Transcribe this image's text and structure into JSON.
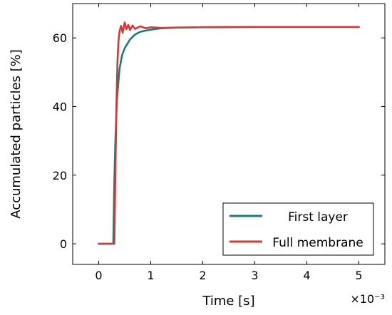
{
  "chart_data": {
    "type": "line",
    "xlabel": "Time [s]",
    "ylabel": "Accumulated particles [%]",
    "x_scale_label": "×10⁻³",
    "xlim": [
      -0.0005,
      0.0055
    ],
    "ylim": [
      -6,
      70
    ],
    "x_ticks": [
      0,
      0.001,
      0.002,
      0.003,
      0.004,
      0.005
    ],
    "x_tick_labels": [
      "0",
      "1",
      "2",
      "3",
      "4",
      "5"
    ],
    "y_ticks": [
      0,
      20,
      40,
      60
    ],
    "y_tick_labels": [
      "0",
      "20",
      "40",
      "60"
    ],
    "legend_position": "bottom-right",
    "series": [
      {
        "name": "First layer",
        "color": "#1f7a74",
        "x": [
          0,
          0.00028,
          0.0003,
          0.00032,
          0.00035,
          0.0004,
          0.00045,
          0.0005,
          0.0006,
          0.0007,
          0.0008,
          0.001,
          0.0012,
          0.0015,
          0.002,
          0.003,
          0.004,
          0.005
        ],
        "y": [
          0,
          0,
          18,
          30,
          42,
          51,
          55,
          57,
          59.5,
          61,
          61.8,
          62.4,
          62.8,
          63.0,
          63.1,
          63.2,
          63.2,
          63.2
        ]
      },
      {
        "name": "Full membrane",
        "color": "#d03a3a",
        "x": [
          0,
          0.0003,
          0.00032,
          0.00034,
          0.00036,
          0.00038,
          0.0004,
          0.00043,
          0.00046,
          0.0005,
          0.00053,
          0.00057,
          0.0006,
          0.00065,
          0.0007,
          0.0008,
          0.0009,
          0.001,
          0.0012,
          0.0015,
          0.002,
          0.003,
          0.004,
          0.005
        ],
        "y": [
          0,
          0,
          20,
          40,
          53,
          59,
          62,
          63.5,
          61.5,
          64.5,
          62.5,
          63.8,
          62.3,
          63.6,
          62.6,
          63.4,
          62.8,
          63.1,
          62.9,
          63.0,
          63.1,
          63.2,
          63.2,
          63.2
        ]
      }
    ]
  }
}
